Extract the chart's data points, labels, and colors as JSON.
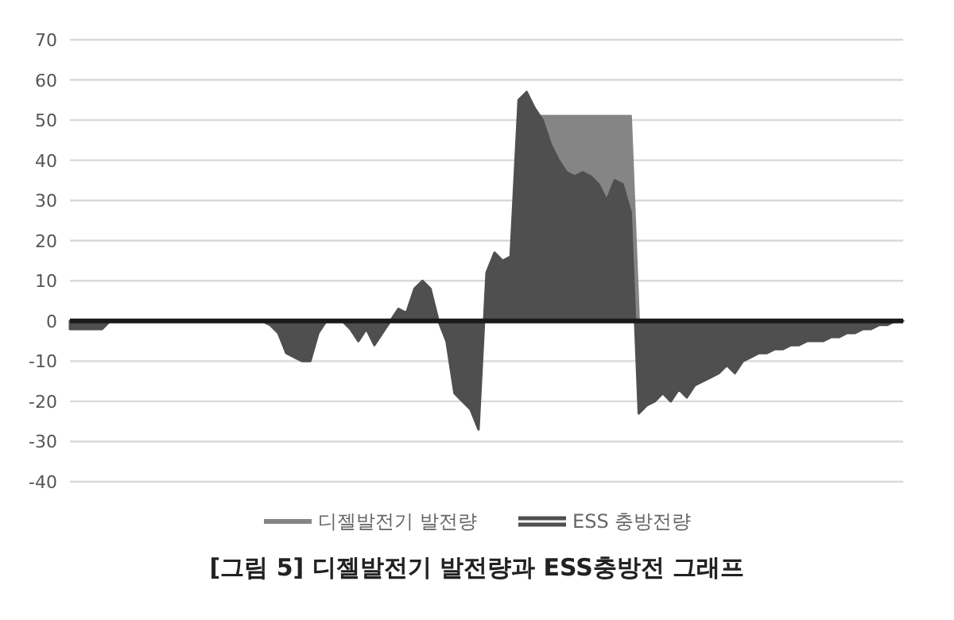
{
  "chart_data": {
    "type": "area",
    "title": "[그림 5] 디젤발전기 발전량과 ESS충방전 그래프",
    "categories": [
      null,
      null,
      null,
      null,
      null,
      null,
      null,
      null,
      null,
      null,
      null,
      null,
      null,
      null,
      null,
      null,
      null,
      null,
      null,
      null,
      null,
      null,
      null,
      null,
      null,
      null,
      null,
      null,
      null,
      null,
      null,
      null,
      null,
      null,
      null,
      null,
      null,
      null,
      null,
      null,
      null,
      null,
      null,
      null,
      null,
      null,
      null,
      null,
      null,
      null,
      null,
      null,
      null,
      null,
      null,
      null,
      null,
      null,
      null,
      null,
      null,
      null,
      null,
      null,
      null,
      null,
      null,
      null,
      null,
      null,
      null,
      null,
      null,
      null,
      null,
      null,
      null,
      null,
      null,
      null,
      null,
      null,
      null,
      null,
      null,
      null,
      null,
      null,
      null,
      null,
      null,
      null,
      null,
      null,
      null,
      null,
      null,
      null,
      null,
      null,
      null,
      null,
      null,
      null,
      null
    ],
    "series": [
      {
        "name": "디젤발전기 발전량",
        "color": "#858585",
        "values": [
          0,
          0,
          0,
          0,
          0,
          0,
          0,
          0,
          0,
          0,
          0,
          0,
          0,
          0,
          0,
          0,
          0,
          0,
          0,
          0,
          0,
          0,
          0,
          0,
          0,
          0,
          0,
          0,
          0,
          0,
          0,
          0,
          0,
          0,
          0,
          0,
          0,
          0,
          0,
          0,
          0,
          0,
          0,
          0,
          0,
          0,
          0,
          0,
          0,
          0,
          0,
          0,
          0,
          0,
          0,
          0,
          51,
          51,
          51,
          51,
          51,
          51,
          51,
          51,
          51,
          51,
          51,
          51,
          51,
          51,
          51,
          0,
          0,
          0,
          0,
          0,
          0,
          0,
          0,
          0,
          0,
          0,
          0,
          0,
          0,
          0,
          0,
          0,
          0,
          0,
          0,
          0,
          0,
          0,
          0,
          0,
          0,
          0,
          0,
          0,
          0,
          0,
          0,
          0,
          0
        ]
      },
      {
        "name": "ESS 충방전량",
        "color": "#4f4f4f",
        "values": [
          -2,
          -2,
          -2,
          -2,
          -2,
          0,
          0,
          0,
          0,
          0,
          0,
          0,
          0,
          0,
          0,
          0,
          0,
          0,
          0,
          0,
          0,
          0,
          0,
          0,
          0,
          -1,
          -3,
          -8,
          -9,
          -10,
          -10,
          -3,
          0,
          0,
          0,
          -2,
          -5,
          -2,
          -6,
          -3,
          0,
          3,
          2,
          8,
          10,
          8,
          0,
          -5,
          -18,
          -20,
          -22,
          -27,
          12,
          17,
          15,
          16,
          55,
          57,
          53,
          50,
          44,
          40,
          37,
          36,
          37,
          36,
          34,
          30,
          35,
          34,
          27,
          -23,
          -21,
          -20,
          -18,
          -20,
          -17,
          -19,
          -16,
          -15,
          -14,
          -13,
          -11,
          -13,
          -10,
          -9,
          -8,
          -8,
          -7,
          -7,
          -6,
          -6,
          -5,
          -5,
          -5,
          -4,
          -4,
          -3,
          -3,
          -2,
          -2,
          -1,
          -1,
          0,
          0
        ]
      }
    ],
    "ylim": [
      -40,
      70
    ],
    "yticks": [
      -40,
      -30,
      -20,
      -10,
      0,
      10,
      20,
      30,
      40,
      50,
      60,
      70
    ],
    "grid": "y",
    "legend": "bottom",
    "tick_labels": "y"
  }
}
